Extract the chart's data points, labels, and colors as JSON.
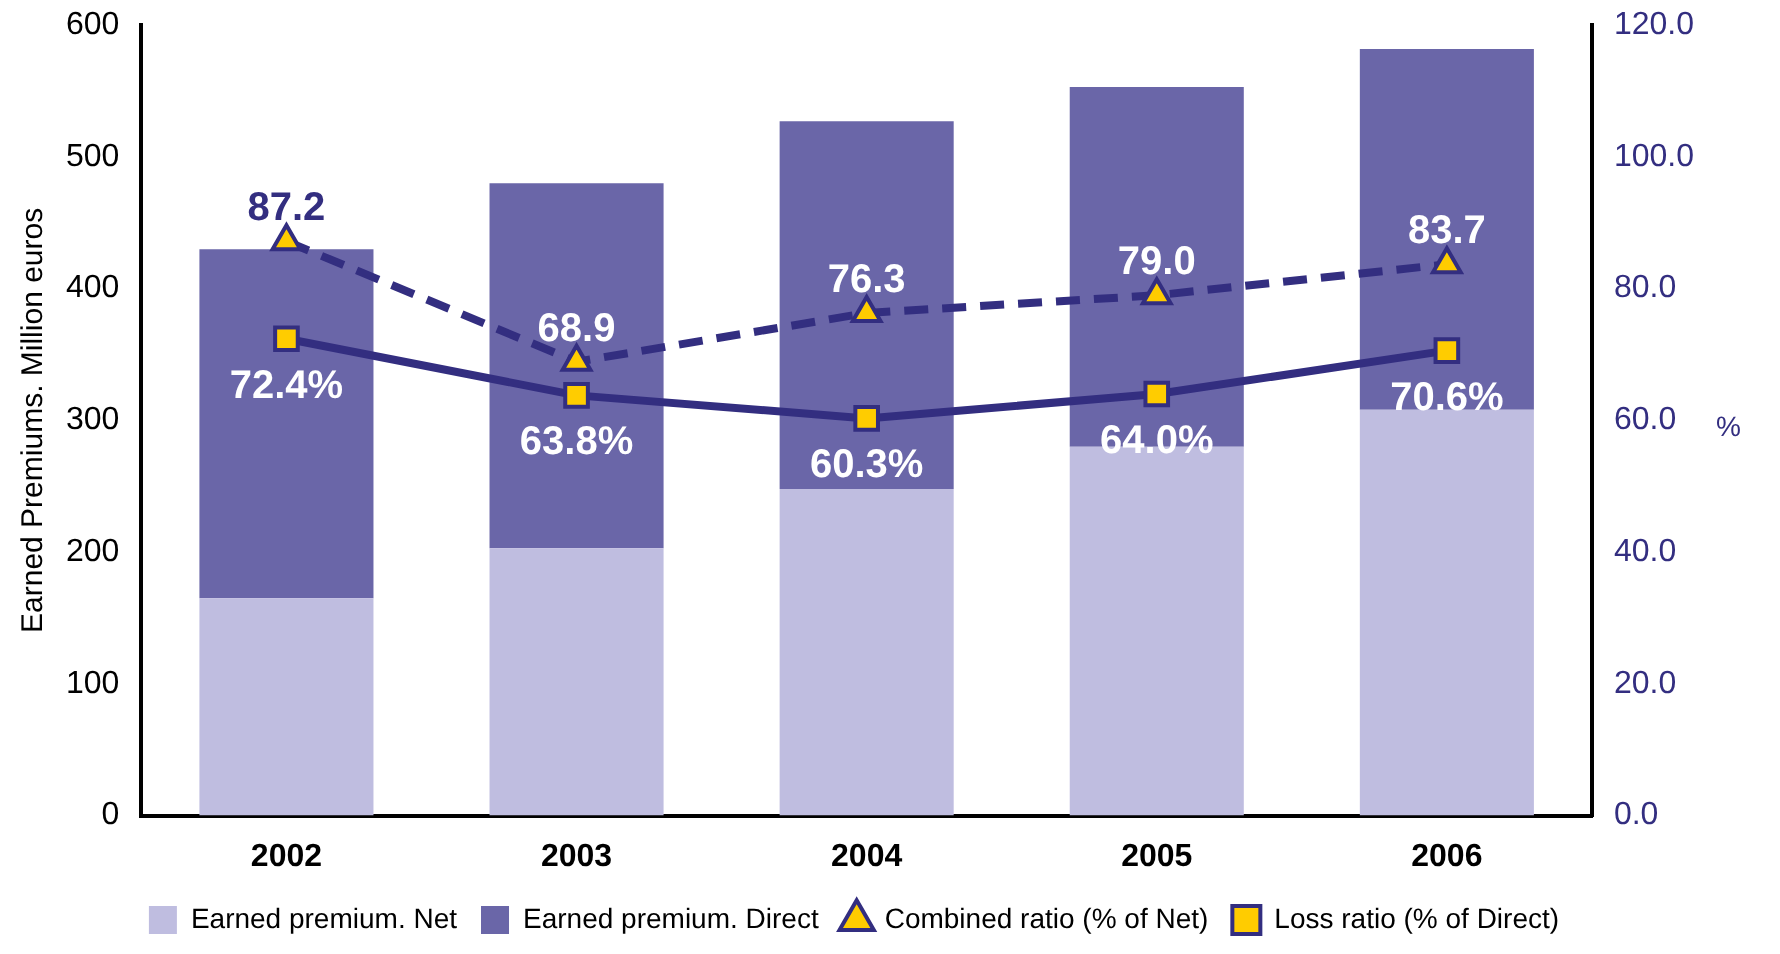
{
  "chart_data": {
    "type": "bar",
    "stacked": true,
    "ylabel": "Earned Premiums. Million euros",
    "y2label": "%",
    "categories": [
      "2002",
      "2003",
      "2004",
      "2005",
      "2006"
    ],
    "ylim": [
      0,
      600
    ],
    "yticks": [
      0,
      100,
      200,
      300,
      400,
      500,
      600
    ],
    "y2lim": [
      0,
      120
    ],
    "y2ticks": [
      {
        "value": 0,
        "label": "0.0"
      },
      {
        "value": 20,
        "label": "20.0"
      },
      {
        "value": 40,
        "label": "40.0"
      },
      {
        "value": 60,
        "label": "60.0"
      },
      {
        "value": 80,
        "label": "80.0"
      },
      {
        "value": 100,
        "label": "100.0"
      },
      {
        "value": 120,
        "label": "120.0"
      }
    ],
    "legend": "bottom",
    "grid": false,
    "series": [
      {
        "name": "Earned premium. Net",
        "color": "#bfbde0",
        "values": [
          165,
          203,
          248,
          280,
          308
        ]
      },
      {
        "name": "Earned premium. Direct",
        "color": "#6a66a8",
        "values": [
          265,
          277,
          279,
          273,
          274
        ]
      },
      {
        "name": "Combined ratio (% of Net)",
        "type": "line",
        "axis": "y2",
        "color": "#332e80",
        "marker": "triangle",
        "line_style": "dashed",
        "values": [
          87.2,
          68.9,
          76.3,
          79.0,
          83.7
        ],
        "value_labels": [
          "87.2",
          "68.9",
          "76.3",
          "79.0",
          "83.7"
        ]
      },
      {
        "name": "Loss ratio (% of Direct)",
        "type": "line",
        "axis": "y2",
        "color": "#332e80",
        "marker": "square",
        "line_style": "solid",
        "values": [
          72.4,
          63.8,
          60.3,
          64.0,
          70.6
        ],
        "value_labels": [
          "72.4%",
          "63.8%",
          "60.3%",
          "64.0%",
          "70.6%"
        ]
      }
    ]
  }
}
